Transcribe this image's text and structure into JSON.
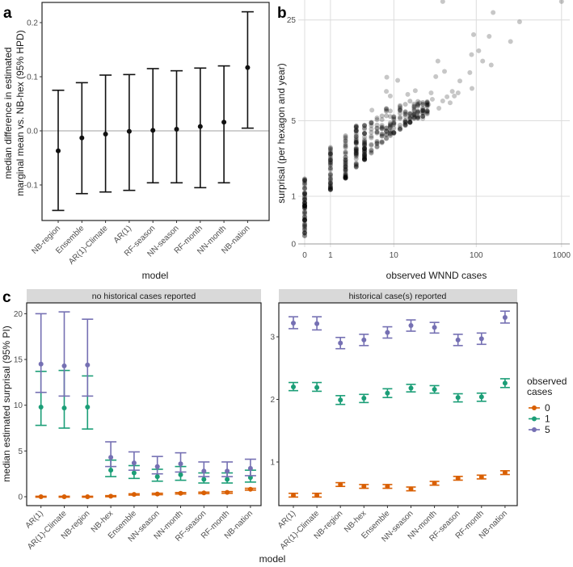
{
  "panel_labels": {
    "a": "a",
    "b": "b",
    "c": "c"
  },
  "chart_data": [
    {
      "id": "a",
      "type": "errorbar",
      "xlabel": "model",
      "ylabel": [
        "median difference in estimated",
        "marginal mean vs. NB-hex (95% HPD)"
      ],
      "ylim": [
        -0.165,
        0.24
      ],
      "yticks": [
        -0.1,
        0.0,
        0.1,
        0.2
      ],
      "ytick_labels": [
        "-0.1",
        "0.0",
        "0.1",
        "0.2"
      ],
      "reference_line": 0,
      "categories": [
        "NB-region",
        "Ensemble",
        "AR(1)-Climate",
        "AR(1)",
        "RF-season",
        "NN-season",
        "RF-month",
        "NN-month",
        "NB-nation"
      ],
      "median": [
        -0.037,
        -0.013,
        -0.006,
        -0.001,
        0.001,
        0.003,
        0.008,
        0.016,
        0.117
      ],
      "lower": [
        -0.147,
        -0.116,
        -0.113,
        -0.11,
        -0.096,
        -0.096,
        -0.105,
        -0.096,
        0.005
      ],
      "upper": [
        0.075,
        0.089,
        0.103,
        0.104,
        0.115,
        0.111,
        0.116,
        0.12,
        0.22
      ]
    },
    {
      "id": "b",
      "type": "scatter",
      "xlabel": "observed WNND cases",
      "ylabel": "surprisal (per hexagon and year)",
      "x_scale": "log1p",
      "y_scale": "log1p",
      "xticks": [
        0,
        1,
        10,
        100,
        1000
      ],
      "xtick_labels": [
        "0",
        "1",
        "10",
        "100",
        "1000"
      ],
      "yticks": [
        0,
        1,
        5,
        25
      ],
      "ytick_labels": [
        "0",
        "1",
        "5",
        "25"
      ],
      "grid": true,
      "dense_columns": [
        {
          "x": 0,
          "y": [
            0.05,
            1.6
          ]
        },
        {
          "x": 1,
          "y": [
            1.2,
            3.1
          ]
        },
        {
          "x": 2,
          "y": [
            1.6,
            4.1
          ]
        },
        {
          "x": 3,
          "y": [
            2.05,
            4.6
          ]
        },
        {
          "x": 4,
          "y": [
            2.4,
            5.0
          ]
        },
        {
          "x": 5,
          "y": [
            2.7,
            5.0
          ]
        },
        {
          "x": 6,
          "y": [
            3.0,
            5.4
          ]
        },
        {
          "x": 7,
          "y": [
            3.3,
            6.2
          ]
        },
        {
          "x": 8,
          "y": [
            3.6,
            6.5
          ]
        },
        {
          "x": 9,
          "y": [
            3.8,
            6.0
          ]
        },
        {
          "x": 10,
          "y": [
            4.0,
            6.6
          ]
        },
        {
          "x": 12,
          "y": [
            4.3,
            6.5
          ]
        },
        {
          "x": 14,
          "y": [
            4.6,
            6.8
          ]
        },
        {
          "x": 16,
          "y": [
            4.8,
            7.2
          ]
        },
        {
          "x": 18,
          "y": [
            5.0,
            7.0
          ]
        },
        {
          "x": 20,
          "y": [
            5.2,
            7.4
          ]
        },
        {
          "x": 23,
          "y": [
            5.4,
            7.5
          ]
        },
        {
          "x": 26,
          "y": [
            5.6,
            7.0
          ]
        }
      ],
      "points": [
        [
          40,
          33
        ],
        [
          1000,
          33
        ],
        [
          158,
          28
        ],
        [
          323,
          24.3
        ],
        [
          93,
          20
        ],
        [
          142,
          19.5
        ],
        [
          253,
          18
        ],
        [
          88,
          14.7
        ],
        [
          107,
          15.6
        ],
        [
          119,
          13.3
        ],
        [
          150,
          12.5
        ],
        [
          35,
          13.3
        ],
        [
          42,
          11.3
        ],
        [
          8.1,
          10.3
        ],
        [
          11.2,
          9.8
        ],
        [
          18.6,
          8.3
        ],
        [
          33,
          10.4
        ],
        [
          64,
          9.7
        ],
        [
          89,
          8.6
        ],
        [
          84,
          11.1
        ],
        [
          5.1,
          6.0
        ],
        [
          8,
          8.2
        ],
        [
          9,
          7.6
        ],
        [
          15,
          7.8
        ],
        [
          52,
          8.2
        ],
        [
          61,
          8.0
        ],
        [
          49,
          6.8
        ],
        [
          29,
          8.0
        ],
        [
          21,
          6.8
        ],
        [
          36,
          6.2
        ],
        [
          23,
          5.2
        ],
        [
          14,
          5.4
        ],
        [
          30,
          7.2
        ],
        [
          45,
          7.5
        ],
        [
          40,
          7.0
        ],
        [
          27,
          6.6
        ],
        [
          55,
          7.6
        ]
      ]
    },
    {
      "id": "c-left",
      "type": "errorbar",
      "strip": "no historical cases reported",
      "ylabel": "median estimated surprisal (95% PI)",
      "xlabel": "model",
      "ylim": [
        -1,
        21.2
      ],
      "yticks": [
        0,
        5,
        10,
        15,
        20
      ],
      "ytick_labels": [
        "0",
        "5",
        "10",
        "15",
        "20"
      ],
      "categories": [
        "AR(1)",
        "AR(1)-Climate",
        "NB-region",
        "NB-hex",
        "Ensemble",
        "NN-season",
        "NN-month",
        "RF-season",
        "RF-month",
        "NB-nation"
      ],
      "series": [
        {
          "name": "0",
          "color": "#d95f02",
          "median": [
            0,
            0,
            0,
            0.05,
            0.25,
            0.3,
            0.38,
            0.42,
            0.47,
            0.82
          ],
          "lower": [
            -0.05,
            -0.05,
            -0.05,
            0,
            0.18,
            0.22,
            0.3,
            0.34,
            0.38,
            0.72
          ],
          "upper": [
            0.05,
            0.05,
            0.05,
            0.12,
            0.32,
            0.38,
            0.46,
            0.5,
            0.56,
            0.92
          ]
        },
        {
          "name": "1",
          "color": "#1b9e77",
          "median": [
            9.8,
            9.7,
            9.8,
            2.9,
            2.6,
            2.2,
            2.4,
            1.9,
            1.9,
            2.1
          ],
          "lower": [
            7.8,
            7.5,
            7.4,
            2.2,
            2.0,
            1.7,
            1.8,
            1.5,
            1.5,
            1.6
          ],
          "upper": [
            13.7,
            13.8,
            13.2,
            4.0,
            3.4,
            3.0,
            3.3,
            2.6,
            2.6,
            2.9
          ]
        },
        {
          "name": "5",
          "color": "#7570b3",
          "median": [
            14.5,
            14.3,
            14.4,
            4.3,
            3.7,
            3.3,
            3.6,
            2.8,
            2.8,
            3.1
          ],
          "lower": [
            11.4,
            11.0,
            11.0,
            3.3,
            2.9,
            2.5,
            2.7,
            2.2,
            2.2,
            2.3
          ],
          "upper": [
            20.0,
            20.2,
            19.4,
            6.0,
            4.9,
            4.4,
            4.8,
            3.8,
            3.8,
            4.1
          ]
        }
      ]
    },
    {
      "id": "c-right",
      "type": "errorbar",
      "strip": "historical case(s) reported",
      "ylim": [
        0.3,
        3.54
      ],
      "yticks": [
        1,
        2,
        3
      ],
      "ytick_labels": [
        "1",
        "2",
        "3"
      ],
      "categories": [
        "AR(1)",
        "AR(1)-Climate",
        "NB-region",
        "NB-hex",
        "Ensemble",
        "NN-season",
        "NN-month",
        "RF-season",
        "RF-month",
        "NB-nation"
      ],
      "series": [
        {
          "name": "0",
          "color": "#d95f02",
          "median": [
            0.47,
            0.47,
            0.64,
            0.61,
            0.61,
            0.57,
            0.66,
            0.74,
            0.76,
            0.83
          ],
          "lower": [
            0.44,
            0.44,
            0.61,
            0.58,
            0.58,
            0.54,
            0.63,
            0.71,
            0.73,
            0.8
          ],
          "upper": [
            0.5,
            0.5,
            0.67,
            0.64,
            0.64,
            0.6,
            0.69,
            0.77,
            0.79,
            0.86
          ]
        },
        {
          "name": "1",
          "color": "#1b9e77",
          "median": [
            2.2,
            2.19,
            1.99,
            2.02,
            2.1,
            2.18,
            2.16,
            2.03,
            2.04,
            2.26
          ],
          "lower": [
            2.14,
            2.13,
            1.92,
            1.95,
            2.03,
            2.12,
            2.1,
            1.96,
            1.97,
            2.19
          ],
          "upper": [
            2.27,
            2.27,
            2.06,
            2.08,
            2.17,
            2.24,
            2.22,
            2.09,
            2.1,
            2.33
          ]
        },
        {
          "name": "5",
          "color": "#7570b3",
          "median": [
            3.22,
            3.21,
            2.9,
            2.95,
            3.07,
            3.18,
            3.15,
            2.95,
            2.97,
            3.31
          ],
          "lower": [
            3.13,
            3.11,
            2.81,
            2.86,
            2.98,
            3.09,
            3.06,
            2.86,
            2.88,
            3.22
          ],
          "upper": [
            3.32,
            3.32,
            2.99,
            3.04,
            3.16,
            3.27,
            3.23,
            3.04,
            3.06,
            3.41
          ]
        }
      ]
    }
  ],
  "legend": {
    "title_line1": "observed",
    "title_line2": "cases",
    "items": [
      "0",
      "1",
      "5"
    ]
  }
}
